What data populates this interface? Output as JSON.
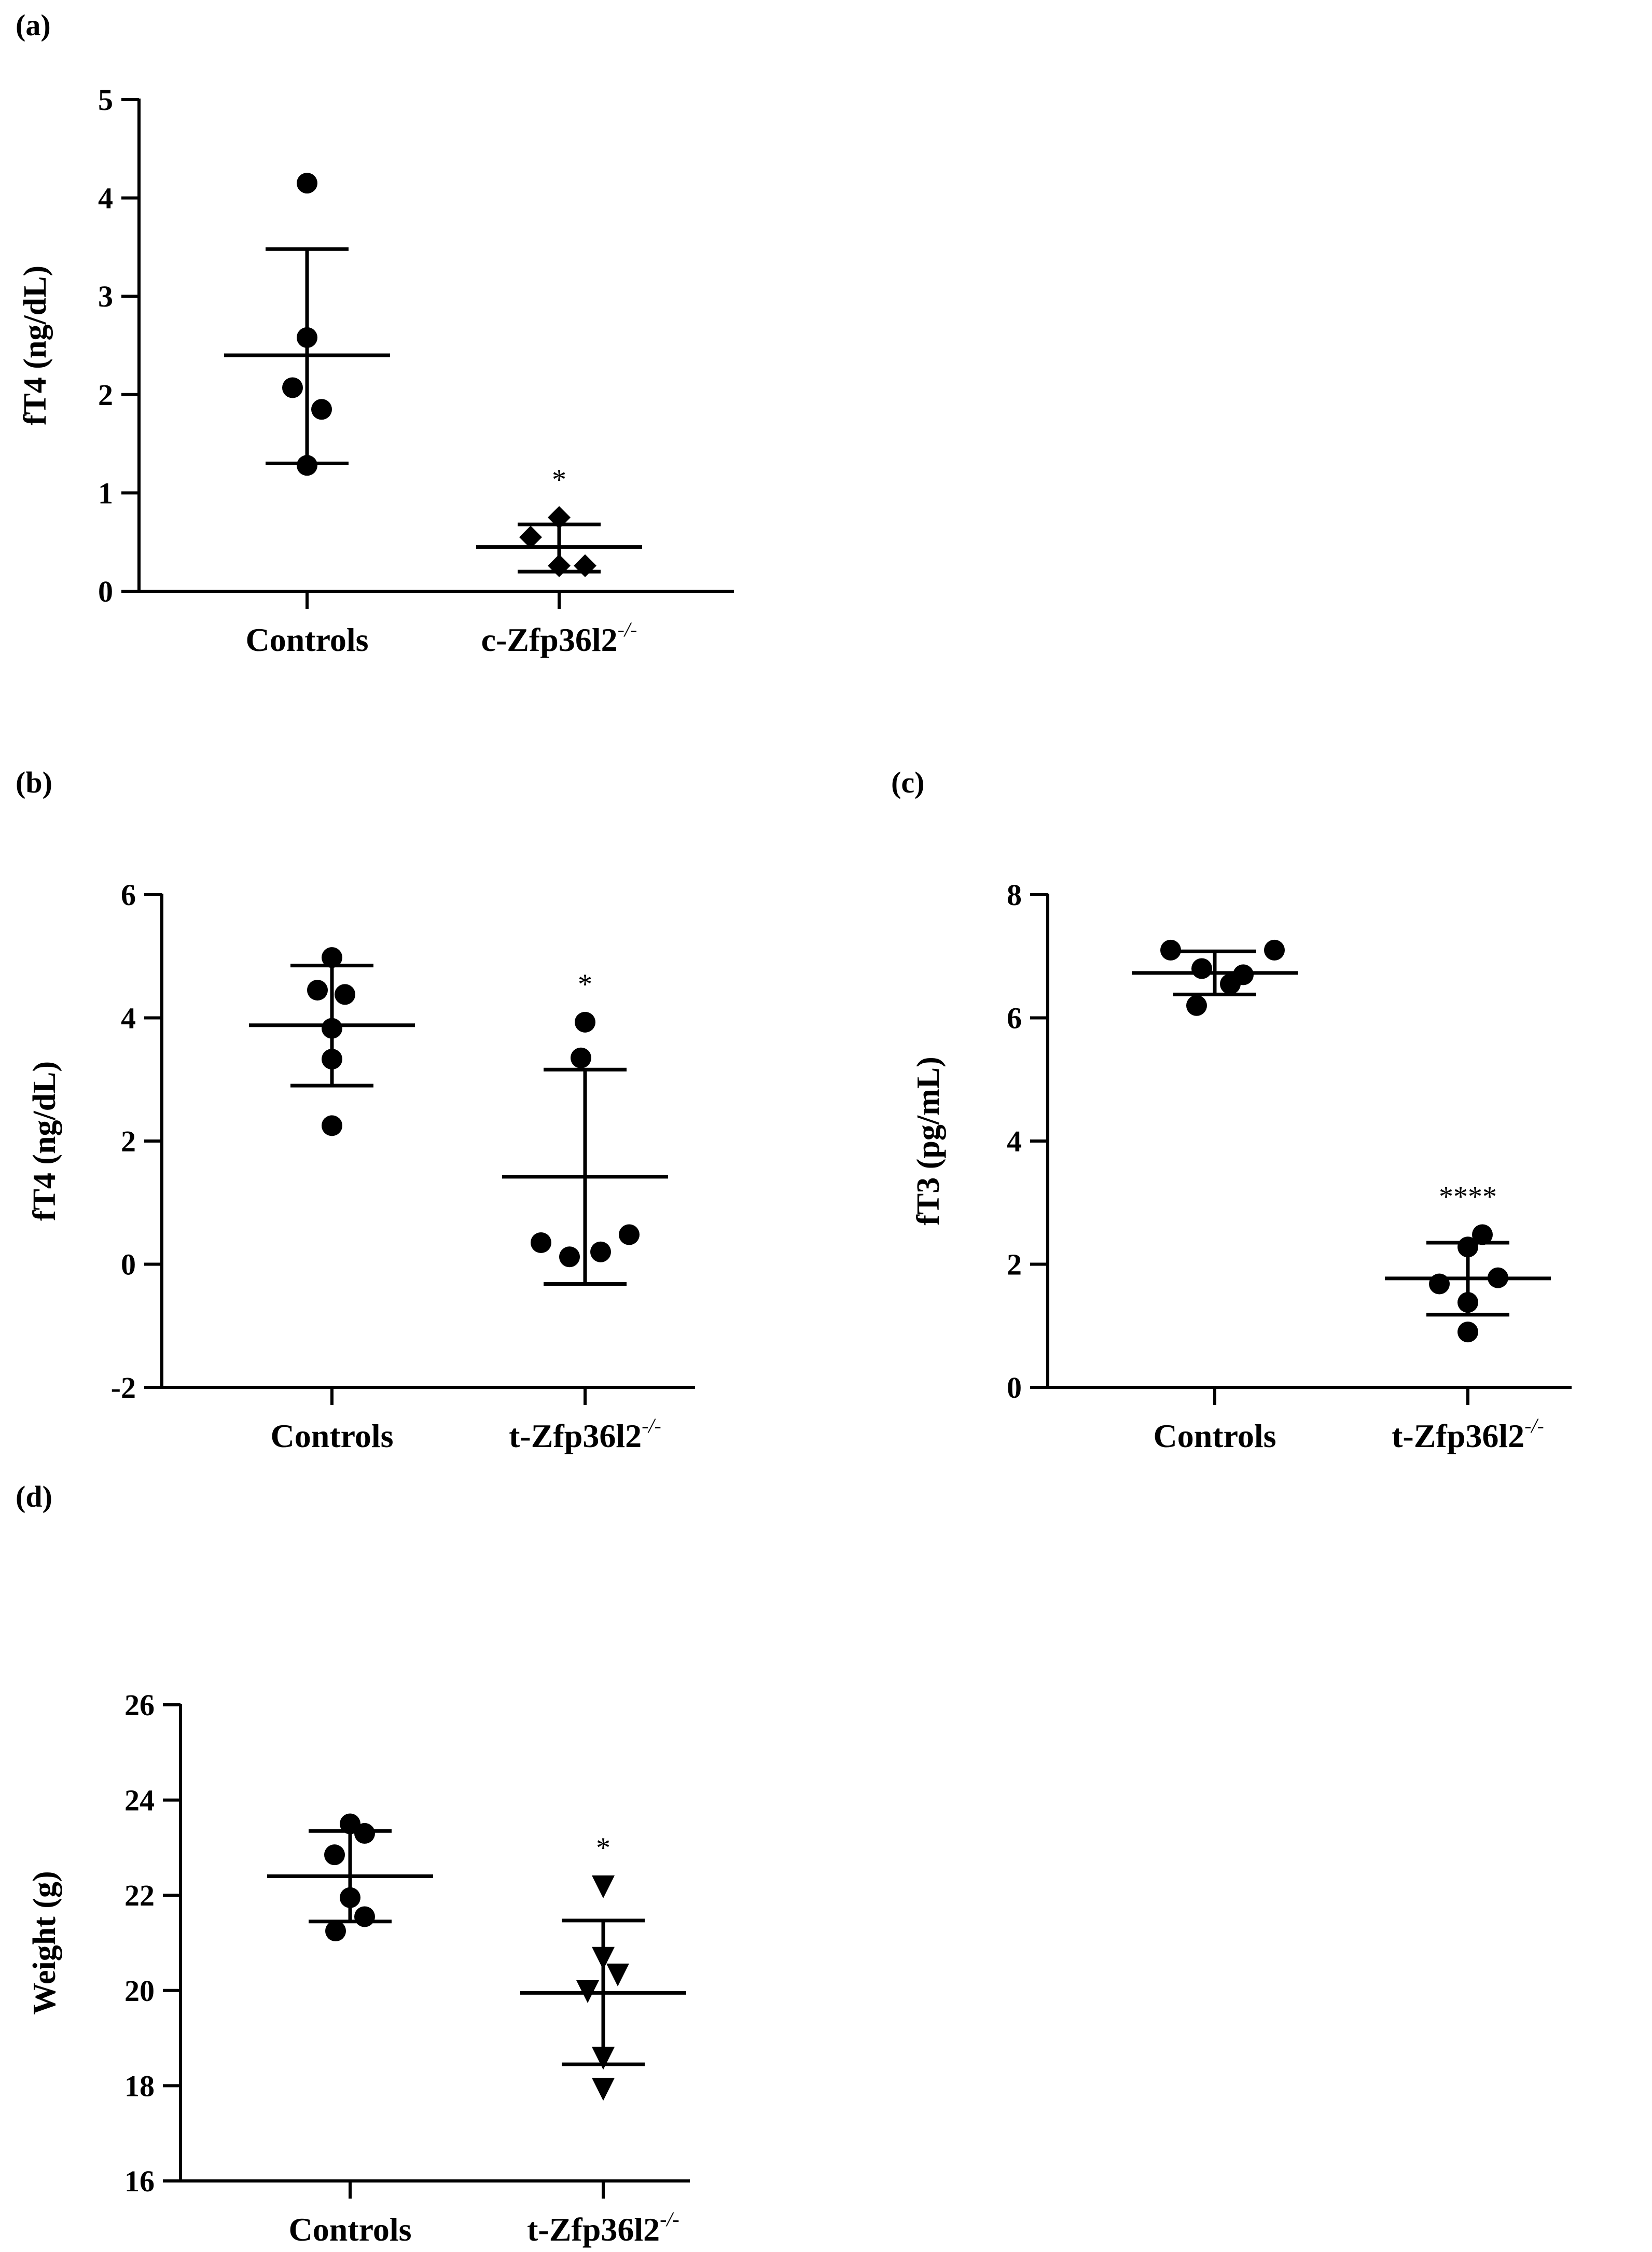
{
  "chart_data": [
    {
      "panel": "(a)",
      "type": "scatter",
      "ylabel": "fT4 (ng/dL)",
      "ylim": [
        0,
        5
      ],
      "yticks": [
        0,
        1,
        2,
        3,
        4,
        5
      ],
      "categories": [
        {
          "name": "Controls",
          "sup": "",
          "marker": "circle",
          "points": [
            4.15,
            2.58,
            2.07,
            1.85,
            1.28
          ],
          "mean": 2.4,
          "sd_low": 1.3,
          "sd_high": 3.48,
          "sig": ""
        },
        {
          "name": "c-Zfp36l2",
          "sup": "-/-",
          "marker": "diamond",
          "points": [
            0.75,
            0.55,
            0.26,
            0.26
          ],
          "mean": 0.45,
          "sd_low": 0.2,
          "sd_high": 0.68,
          "sig": "*"
        }
      ]
    },
    {
      "panel": "(b)",
      "type": "scatter",
      "ylabel": "fT4 (ng/dL)",
      "ylim": [
        -2,
        6
      ],
      "yticks": [
        -2,
        0,
        2,
        4,
        6
      ],
      "categories": [
        {
          "name": "Controls",
          "sup": "",
          "marker": "circle",
          "points": [
            4.98,
            4.45,
            4.38,
            3.83,
            3.33,
            2.25
          ],
          "mean": 3.88,
          "sd_low": 2.9,
          "sd_high": 4.85,
          "sig": ""
        },
        {
          "name": "t-Zfp36l2",
          "sup": "-/-",
          "marker": "circle",
          "points": [
            3.93,
            3.35,
            0.48,
            0.35,
            0.2,
            0.12
          ],
          "mean": 1.42,
          "sd_low": -0.32,
          "sd_high": 3.16,
          "sig": "*"
        }
      ]
    },
    {
      "panel": "(c)",
      "type": "scatter",
      "ylabel": "fT3 (pg/mL)",
      "ylim": [
        0,
        8
      ],
      "yticks": [
        0,
        2,
        4,
        6,
        8
      ],
      "categories": [
        {
          "name": "Controls",
          "sup": "",
          "marker": "circle",
          "points": [
            7.1,
            7.1,
            6.8,
            6.55,
            6.7,
            6.2
          ],
          "mean": 6.73,
          "sd_low": 6.38,
          "sd_high": 7.08,
          "sig": ""
        },
        {
          "name": "t-Zfp36l2",
          "sup": "-/-",
          "marker": "circle",
          "points": [
            2.48,
            2.28,
            1.78,
            1.68,
            1.38,
            0.9
          ],
          "mean": 1.77,
          "sd_low": 1.18,
          "sd_high": 2.35,
          "sig": "****"
        }
      ]
    },
    {
      "panel": "(d)",
      "type": "scatter",
      "ylabel": "Weight (g)",
      "ylim": [
        16,
        26
      ],
      "yticks": [
        16,
        18,
        20,
        22,
        24,
        26
      ],
      "categories": [
        {
          "name": "Controls",
          "sup": "",
          "marker": "circle",
          "points": [
            23.5,
            23.3,
            22.85,
            21.95,
            21.55,
            21.25
          ],
          "mean": 22.4,
          "sd_low": 21.45,
          "sd_high": 23.35,
          "sig": ""
        },
        {
          "name": "t-Zfp36l2",
          "sup": "-/-",
          "marker": "triangle-down",
          "points": [
            22.2,
            20.7,
            20.35,
            20.0,
            18.6,
            17.95
          ],
          "mean": 19.95,
          "sd_low": 18.45,
          "sd_high": 21.47,
          "sig": "*"
        }
      ]
    }
  ]
}
